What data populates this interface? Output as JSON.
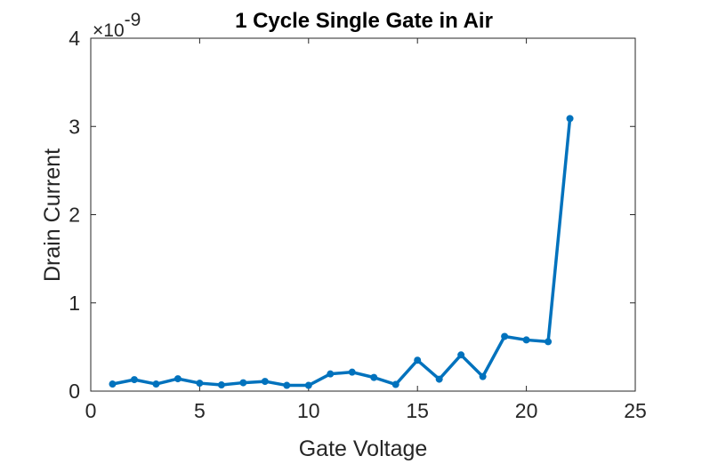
{
  "chart_data": {
    "type": "line",
    "title": "1 Cycle Single Gate in Air",
    "xlabel": "Gate Voltage",
    "ylabel": "Drain Current",
    "xlim": [
      0,
      25
    ],
    "ylim": [
      0,
      4
    ],
    "xticks": [
      0,
      5,
      10,
      15,
      20,
      25
    ],
    "yticks": [
      0,
      1,
      2,
      3,
      4
    ],
    "y_exponent_base": "×10",
    "y_exponent": "-9",
    "grid": false,
    "box": true,
    "line_color": "#0072BD",
    "series": [
      {
        "name": "Drain Current",
        "x": [
          1,
          2,
          3,
          4,
          5,
          6,
          7,
          8,
          9,
          10,
          11,
          12,
          13,
          14,
          15,
          16,
          17,
          18,
          19,
          20,
          21,
          22
        ],
        "values": [
          0.08,
          0.13,
          0.08,
          0.14,
          0.09,
          0.07,
          0.095,
          0.11,
          0.065,
          0.065,
          0.195,
          0.215,
          0.155,
          0.075,
          0.35,
          0.135,
          0.41,
          0.165,
          0.62,
          0.58,
          0.56,
          3.09
        ]
      }
    ]
  }
}
